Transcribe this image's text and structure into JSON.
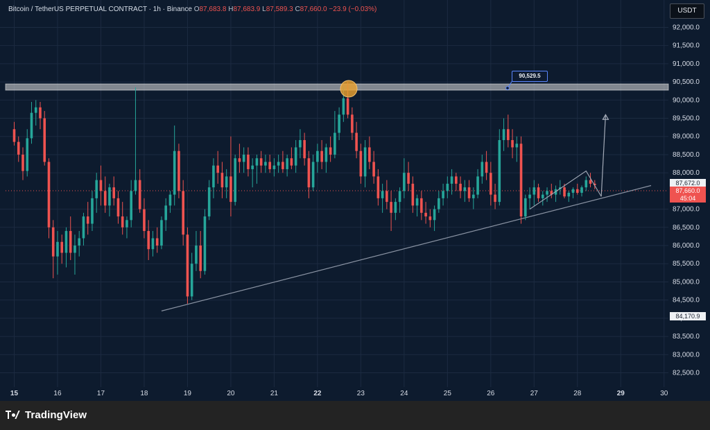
{
  "legend": {
    "pair": "Bitcoin / TetherUS PERPETUAL CONTRACT · 1h · Binance",
    "open_label": "O",
    "open_value": "87,683.8",
    "high_label": "H",
    "high_value": "87,683.9",
    "low_label": "L",
    "low_value": "87,589.3",
    "close_label": "C",
    "close_value": "87,660.0",
    "change": "−23.9 (−0.03%)"
  },
  "toolbar": {
    "currency_button": "USDT"
  },
  "annotations": {
    "resistance_label": "90,529.5"
  },
  "price_tags": {
    "cursor_price": "87,672.0",
    "last_price": "87,660.0",
    "countdown": "45:04",
    "low_price": "84,170.9"
  },
  "chart_data": {
    "type": "candlestick",
    "symbol": "BTCUSDT.P",
    "timeframe": "1h",
    "exchange": "Binance",
    "colors": {
      "up": "#26a69a",
      "down": "#ef5350",
      "background": "#0d1b2e",
      "grid": "#1c2b41",
      "axis_text": "#d8dde7"
    },
    "x_axis": {
      "ticks": [
        "15",
        "16",
        "17",
        "18",
        "19",
        "20",
        "21",
        "22",
        "23",
        "24",
        "25",
        "26",
        "27",
        "28",
        "29",
        "30"
      ],
      "bold_ticks": [
        "15",
        "22",
        "29"
      ]
    },
    "y_axis": {
      "ticks": [
        "92,000.0",
        "91,500.0",
        "91,000.0",
        "90,500.0",
        "90,000.0",
        "89,500.0",
        "89,000.0",
        "88,500.0",
        "88,000.0",
        "87,000.0",
        "86,500.0",
        "86,000.0",
        "85,500.0",
        "85,000.0",
        "84,500.0",
        "84,000.0",
        "83,500.0",
        "83,000.0",
        "82,500.0"
      ],
      "min": 82300,
      "max": 92600
    },
    "resistance": 90529.5,
    "support_line": {
      "start": {
        "x": 18.4,
        "y": 84200
      },
      "end": {
        "x": 29.7,
        "y": 87650
      }
    },
    "candles": [
      {
        "x": 15.0,
        "o": 89200,
        "h": 89400,
        "l": 88750,
        "c": 88850
      },
      {
        "x": 15.1,
        "o": 88850,
        "h": 89000,
        "l": 88300,
        "c": 88500
      },
      {
        "x": 15.2,
        "o": 88500,
        "h": 88700,
        "l": 87800,
        "c": 88050
      },
      {
        "x": 15.3,
        "o": 88050,
        "h": 89200,
        "l": 87900,
        "c": 88950
      },
      {
        "x": 15.4,
        "o": 88950,
        "h": 89950,
        "l": 88800,
        "c": 89650
      },
      {
        "x": 15.5,
        "o": 89650,
        "h": 90000,
        "l": 89300,
        "c": 89800
      },
      {
        "x": 15.6,
        "o": 89800,
        "h": 89950,
        "l": 89200,
        "c": 89500
      },
      {
        "x": 15.7,
        "o": 89500,
        "h": 89700,
        "l": 88200,
        "c": 88300
      },
      {
        "x": 15.8,
        "o": 88300,
        "h": 88400,
        "l": 86200,
        "c": 86500
      },
      {
        "x": 15.9,
        "o": 86500,
        "h": 86700,
        "l": 85100,
        "c": 85700
      },
      {
        "x": 16.0,
        "o": 85700,
        "h": 86400,
        "l": 85200,
        "c": 86100
      },
      {
        "x": 16.1,
        "o": 86100,
        "h": 86300,
        "l": 85500,
        "c": 85800
      },
      {
        "x": 16.2,
        "o": 85800,
        "h": 86500,
        "l": 85400,
        "c": 86400
      },
      {
        "x": 16.3,
        "o": 86400,
        "h": 86800,
        "l": 85600,
        "c": 85800
      },
      {
        "x": 16.4,
        "o": 85800,
        "h": 86300,
        "l": 85200,
        "c": 86000
      },
      {
        "x": 16.5,
        "o": 86000,
        "h": 86400,
        "l": 85700,
        "c": 86200
      },
      {
        "x": 16.6,
        "o": 86200,
        "h": 86900,
        "l": 86000,
        "c": 86800
      },
      {
        "x": 16.7,
        "o": 86800,
        "h": 87200,
        "l": 86300,
        "c": 86600
      },
      {
        "x": 16.8,
        "o": 86600,
        "h": 87500,
        "l": 86400,
        "c": 87300
      },
      {
        "x": 16.9,
        "o": 87300,
        "h": 88000,
        "l": 86900,
        "c": 87800
      },
      {
        "x": 17.0,
        "o": 87800,
        "h": 88200,
        "l": 87100,
        "c": 87500
      },
      {
        "x": 17.1,
        "o": 87500,
        "h": 87900,
        "l": 86900,
        "c": 87100
      },
      {
        "x": 17.2,
        "o": 87100,
        "h": 87700,
        "l": 86800,
        "c": 87600
      },
      {
        "x": 17.3,
        "o": 87600,
        "h": 87900,
        "l": 87100,
        "c": 87300
      },
      {
        "x": 17.4,
        "o": 87300,
        "h": 87500,
        "l": 86600,
        "c": 86800
      },
      {
        "x": 17.5,
        "o": 86800,
        "h": 87200,
        "l": 86300,
        "c": 86500
      },
      {
        "x": 17.6,
        "o": 86500,
        "h": 86800,
        "l": 86200,
        "c": 86700
      },
      {
        "x": 17.7,
        "o": 86700,
        "h": 87800,
        "l": 86500,
        "c": 87500
      },
      {
        "x": 17.8,
        "o": 87500,
        "h": 90350,
        "l": 87400,
        "c": 87800
      },
      {
        "x": 17.9,
        "o": 87800,
        "h": 88100,
        "l": 86900,
        "c": 87000
      },
      {
        "x": 18.0,
        "o": 87000,
        "h": 87300,
        "l": 86200,
        "c": 86400
      },
      {
        "x": 18.1,
        "o": 86400,
        "h": 86700,
        "l": 85600,
        "c": 85900
      },
      {
        "x": 18.2,
        "o": 85900,
        "h": 86400,
        "l": 85700,
        "c": 86200
      },
      {
        "x": 18.3,
        "o": 86200,
        "h": 86500,
        "l": 85800,
        "c": 86000
      },
      {
        "x": 18.4,
        "o": 86000,
        "h": 86800,
        "l": 85900,
        "c": 86700
      },
      {
        "x": 18.5,
        "o": 86700,
        "h": 87300,
        "l": 86400,
        "c": 87100
      },
      {
        "x": 18.6,
        "o": 87100,
        "h": 87500,
        "l": 86900,
        "c": 87400
      },
      {
        "x": 18.7,
        "o": 87400,
        "h": 89300,
        "l": 87100,
        "c": 88600
      },
      {
        "x": 18.8,
        "o": 88600,
        "h": 88800,
        "l": 87300,
        "c": 87500
      },
      {
        "x": 18.9,
        "o": 87500,
        "h": 87800,
        "l": 86000,
        "c": 86300
      },
      {
        "x": 19.0,
        "o": 86300,
        "h": 86500,
        "l": 84400,
        "c": 84600
      },
      {
        "x": 19.1,
        "o": 84600,
        "h": 85800,
        "l": 84500,
        "c": 85500
      },
      {
        "x": 19.2,
        "o": 85500,
        "h": 86400,
        "l": 85300,
        "c": 86000
      },
      {
        "x": 19.3,
        "o": 86000,
        "h": 86400,
        "l": 85100,
        "c": 85300
      },
      {
        "x": 19.4,
        "o": 85300,
        "h": 87000,
        "l": 85200,
        "c": 86800
      },
      {
        "x": 19.5,
        "o": 86800,
        "h": 87800,
        "l": 86700,
        "c": 87600
      },
      {
        "x": 19.6,
        "o": 87600,
        "h": 88400,
        "l": 87300,
        "c": 88200
      },
      {
        "x": 19.7,
        "o": 88200,
        "h": 88600,
        "l": 87700,
        "c": 88000
      },
      {
        "x": 19.8,
        "o": 88000,
        "h": 88300,
        "l": 87300,
        "c": 87600
      },
      {
        "x": 19.9,
        "o": 87600,
        "h": 88100,
        "l": 87300,
        "c": 87900
      },
      {
        "x": 20.0,
        "o": 87900,
        "h": 89000,
        "l": 86800,
        "c": 87200
      },
      {
        "x": 20.1,
        "o": 87200,
        "h": 88500,
        "l": 87100,
        "c": 88400
      },
      {
        "x": 20.2,
        "o": 88400,
        "h": 88800,
        "l": 88000,
        "c": 88300
      },
      {
        "x": 20.3,
        "o": 88300,
        "h": 88700,
        "l": 88000,
        "c": 88500
      },
      {
        "x": 20.4,
        "o": 88500,
        "h": 88700,
        "l": 87900,
        "c": 88100
      },
      {
        "x": 20.5,
        "o": 88100,
        "h": 88400,
        "l": 87600,
        "c": 88200
      },
      {
        "x": 20.6,
        "o": 88200,
        "h": 88500,
        "l": 87700,
        "c": 88400
      },
      {
        "x": 20.7,
        "o": 88400,
        "h": 88600,
        "l": 88000,
        "c": 88200
      },
      {
        "x": 20.8,
        "o": 88200,
        "h": 88500,
        "l": 88000,
        "c": 88300
      },
      {
        "x": 20.9,
        "o": 88300,
        "h": 88500,
        "l": 88000,
        "c": 88100
      },
      {
        "x": 21.0,
        "o": 88100,
        "h": 88400,
        "l": 87900,
        "c": 88200
      },
      {
        "x": 21.1,
        "o": 88200,
        "h": 88500,
        "l": 88000,
        "c": 88300
      },
      {
        "x": 21.2,
        "o": 88300,
        "h": 88600,
        "l": 88000,
        "c": 88100
      },
      {
        "x": 21.3,
        "o": 88100,
        "h": 88500,
        "l": 87900,
        "c": 88400
      },
      {
        "x": 21.4,
        "o": 88400,
        "h": 88700,
        "l": 88100,
        "c": 88200
      },
      {
        "x": 21.5,
        "o": 88200,
        "h": 88900,
        "l": 88000,
        "c": 88700
      },
      {
        "x": 21.6,
        "o": 88700,
        "h": 89200,
        "l": 88400,
        "c": 88900
      },
      {
        "x": 21.7,
        "o": 88900,
        "h": 89100,
        "l": 88200,
        "c": 88400
      },
      {
        "x": 21.8,
        "o": 88400,
        "h": 88600,
        "l": 87300,
        "c": 87600
      },
      {
        "x": 21.9,
        "o": 87600,
        "h": 88500,
        "l": 87500,
        "c": 88300
      },
      {
        "x": 22.0,
        "o": 88300,
        "h": 88800,
        "l": 88000,
        "c": 88600
      },
      {
        "x": 22.1,
        "o": 88600,
        "h": 88900,
        "l": 88100,
        "c": 88300
      },
      {
        "x": 22.2,
        "o": 88300,
        "h": 88800,
        "l": 88000,
        "c": 88700
      },
      {
        "x": 22.3,
        "o": 88700,
        "h": 89000,
        "l": 88300,
        "c": 88500
      },
      {
        "x": 22.4,
        "o": 88500,
        "h": 89700,
        "l": 88400,
        "c": 89100
      },
      {
        "x": 22.5,
        "o": 89100,
        "h": 89800,
        "l": 88900,
        "c": 89600
      },
      {
        "x": 22.6,
        "o": 89600,
        "h": 90350,
        "l": 89400,
        "c": 90050
      },
      {
        "x": 22.7,
        "o": 90050,
        "h": 90500,
        "l": 89500,
        "c": 89600
      },
      {
        "x": 22.8,
        "o": 89600,
        "h": 89800,
        "l": 88900,
        "c": 89100
      },
      {
        "x": 22.9,
        "o": 89100,
        "h": 89400,
        "l": 88400,
        "c": 88600
      },
      {
        "x": 23.0,
        "o": 88600,
        "h": 88800,
        "l": 87700,
        "c": 87900
      },
      {
        "x": 23.1,
        "o": 87900,
        "h": 88900,
        "l": 87600,
        "c": 88700
      },
      {
        "x": 23.2,
        "o": 88700,
        "h": 89000,
        "l": 88100,
        "c": 88300
      },
      {
        "x": 23.3,
        "o": 88300,
        "h": 88600,
        "l": 87700,
        "c": 87900
      },
      {
        "x": 23.4,
        "o": 87900,
        "h": 88100,
        "l": 87100,
        "c": 87300
      },
      {
        "x": 23.5,
        "o": 87300,
        "h": 87700,
        "l": 86900,
        "c": 87500
      },
      {
        "x": 23.6,
        "o": 87500,
        "h": 87800,
        "l": 87000,
        "c": 87200
      },
      {
        "x": 23.7,
        "o": 87200,
        "h": 87500,
        "l": 86400,
        "c": 86900
      },
      {
        "x": 23.8,
        "o": 86900,
        "h": 87300,
        "l": 86700,
        "c": 87200
      },
      {
        "x": 23.9,
        "o": 87200,
        "h": 87600,
        "l": 86900,
        "c": 87500
      },
      {
        "x": 24.0,
        "o": 87500,
        "h": 88400,
        "l": 87300,
        "c": 88000
      },
      {
        "x": 24.1,
        "o": 88000,
        "h": 88300,
        "l": 87500,
        "c": 87700
      },
      {
        "x": 24.2,
        "o": 87700,
        "h": 87900,
        "l": 86900,
        "c": 87100
      },
      {
        "x": 24.3,
        "o": 87100,
        "h": 87400,
        "l": 86800,
        "c": 87300
      },
      {
        "x": 24.4,
        "o": 87300,
        "h": 87500,
        "l": 86700,
        "c": 86900
      },
      {
        "x": 24.5,
        "o": 86900,
        "h": 87200,
        "l": 86600,
        "c": 86800
      },
      {
        "x": 24.6,
        "o": 86800,
        "h": 87000,
        "l": 86500,
        "c": 86700
      },
      {
        "x": 24.7,
        "o": 86700,
        "h": 87100,
        "l": 86400,
        "c": 87000
      },
      {
        "x": 24.8,
        "o": 87000,
        "h": 87500,
        "l": 86900,
        "c": 87300
      },
      {
        "x": 24.9,
        "o": 87300,
        "h": 87700,
        "l": 87100,
        "c": 87500
      },
      {
        "x": 25.0,
        "o": 87500,
        "h": 87900,
        "l": 87300,
        "c": 87700
      },
      {
        "x": 25.1,
        "o": 87700,
        "h": 88100,
        "l": 87400,
        "c": 87900
      },
      {
        "x": 25.2,
        "o": 87900,
        "h": 88000,
        "l": 87500,
        "c": 87700
      },
      {
        "x": 25.3,
        "o": 87700,
        "h": 87900,
        "l": 87300,
        "c": 87500
      },
      {
        "x": 25.4,
        "o": 87500,
        "h": 87800,
        "l": 87200,
        "c": 87600
      },
      {
        "x": 25.5,
        "o": 87600,
        "h": 87800,
        "l": 87200,
        "c": 87300
      },
      {
        "x": 25.6,
        "o": 87300,
        "h": 87600,
        "l": 87000,
        "c": 87400
      },
      {
        "x": 25.7,
        "o": 87400,
        "h": 88100,
        "l": 87300,
        "c": 87900
      },
      {
        "x": 25.8,
        "o": 87900,
        "h": 88500,
        "l": 87700,
        "c": 88300
      },
      {
        "x": 25.9,
        "o": 88300,
        "h": 88600,
        "l": 87800,
        "c": 88000
      },
      {
        "x": 26.0,
        "o": 88000,
        "h": 88300,
        "l": 87100,
        "c": 87400
      },
      {
        "x": 26.1,
        "o": 87400,
        "h": 87700,
        "l": 87000,
        "c": 87200
      },
      {
        "x": 26.2,
        "o": 87200,
        "h": 89200,
        "l": 87100,
        "c": 88900
      },
      {
        "x": 26.3,
        "o": 88900,
        "h": 89500,
        "l": 88600,
        "c": 89200
      },
      {
        "x": 26.4,
        "o": 89200,
        "h": 89600,
        "l": 88700,
        "c": 88900
      },
      {
        "x": 26.5,
        "o": 88900,
        "h": 89200,
        "l": 88400,
        "c": 88700
      },
      {
        "x": 26.6,
        "o": 88700,
        "h": 89000,
        "l": 88300,
        "c": 88800
      },
      {
        "x": 26.7,
        "o": 88800,
        "h": 89000,
        "l": 86600,
        "c": 86800
      },
      {
        "x": 26.8,
        "o": 86800,
        "h": 87400,
        "l": 86700,
        "c": 87300
      },
      {
        "x": 26.9,
        "o": 87300,
        "h": 87600,
        "l": 87000,
        "c": 87400
      },
      {
        "x": 27.0,
        "o": 87400,
        "h": 87800,
        "l": 87100,
        "c": 87600
      },
      {
        "x": 27.1,
        "o": 87600,
        "h": 87700,
        "l": 87200,
        "c": 87300
      },
      {
        "x": 27.2,
        "o": 87300,
        "h": 87500,
        "l": 87100,
        "c": 87400
      },
      {
        "x": 27.3,
        "o": 87400,
        "h": 87600,
        "l": 87200,
        "c": 87500
      },
      {
        "x": 27.4,
        "o": 87500,
        "h": 87700,
        "l": 87300,
        "c": 87400
      },
      {
        "x": 27.5,
        "o": 87400,
        "h": 87650,
        "l": 87200,
        "c": 87550
      },
      {
        "x": 27.6,
        "o": 87550,
        "h": 87800,
        "l": 87400,
        "c": 87600
      },
      {
        "x": 27.7,
        "o": 87600,
        "h": 87700,
        "l": 87300,
        "c": 87350
      },
      {
        "x": 27.8,
        "o": 87350,
        "h": 87500,
        "l": 87200,
        "c": 87450
      },
      {
        "x": 27.9,
        "o": 87450,
        "h": 87600,
        "l": 87300,
        "c": 87550
      },
      {
        "x": 28.0,
        "o": 87550,
        "h": 87700,
        "l": 87400,
        "c": 87450
      },
      {
        "x": 28.1,
        "o": 87450,
        "h": 87650,
        "l": 87350,
        "c": 87600
      },
      {
        "x": 28.2,
        "o": 87600,
        "h": 87900,
        "l": 87500,
        "c": 87800
      },
      {
        "x": 28.3,
        "o": 87800,
        "h": 88000,
        "l": 87600,
        "c": 87700
      },
      {
        "x": 28.4,
        "o": 87700,
        "h": 87800,
        "l": 87550,
        "c": 87660
      }
    ],
    "projection": {
      "triangle": [
        {
          "x": 26.9,
          "y": 87000
        },
        {
          "x": 28.2,
          "y": 88050
        },
        {
          "x": 28.55,
          "y": 87350
        }
      ],
      "arrow": {
        "from": {
          "x": 28.55,
          "y": 87350
        },
        "to": {
          "x": 28.65,
          "y": 89600
        }
      }
    }
  },
  "footer": {
    "brand": "TradingView"
  }
}
